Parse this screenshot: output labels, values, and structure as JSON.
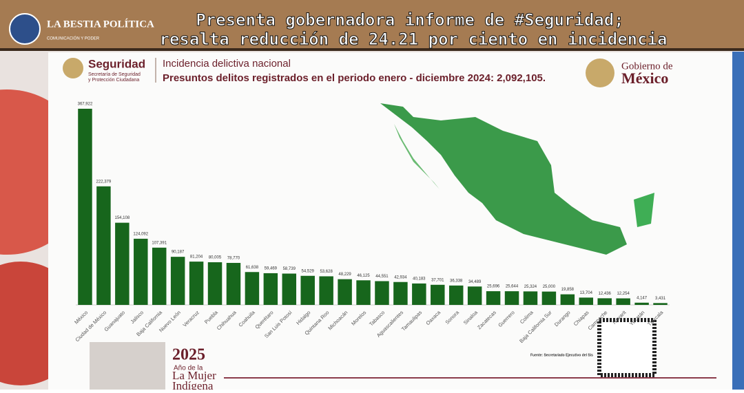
{
  "header": {
    "brand": "LA BESTIA POLÍTICA",
    "brand_tagline": "COMUNICACIÓN Y PODER",
    "title_line1": "Presenta gobernadora informe de #Seguridad;",
    "title_line2": "resalta reducción de 24.21 por ciento en incidencia"
  },
  "slide": {
    "agency": "Seguridad",
    "agency_sub1": "Secretaría de Seguridad",
    "agency_sub2": "y Protección Ciudadana",
    "gov1": "Gobierno de",
    "gov2": "México",
    "year": "2025",
    "year_sub": "Año de la",
    "year_line2": "La Mujer",
    "year_line3": "Indígena",
    "source": "Fuente: Secretariado Ejecutivo del Sis"
  },
  "chart_data": {
    "type": "bar",
    "title": "Incidencia delictiva nacional",
    "subtitle": "Presuntos delitos registrados en el periodo enero - diciembre 2024: 2,092,105.",
    "color": "#17661c",
    "categories": [
      "México",
      "Ciudad de México",
      "Guanajuato",
      "Jalisco",
      "Baja California",
      "Nuevo León",
      "Veracruz",
      "Puebla",
      "Chihuahua",
      "Coahuila",
      "Querétaro",
      "San Luis Potosí",
      "Hidalgo",
      "Quintana Roo",
      "Michoacán",
      "Morelos",
      "Tabasco",
      "Aguascalientes",
      "Tamaulipas",
      "Oaxaca",
      "Sonora",
      "Sinaloa",
      "Zacatecas",
      "Guerrero",
      "Colima",
      "Baja California Sur",
      "Durango",
      "Chiapas",
      "Campeche",
      "Nayarit",
      "Yucatán",
      "Tlaxcala"
    ],
    "values": [
      367922,
      222379,
      154108,
      124092,
      107391,
      90187,
      81204,
      80005,
      78770,
      61638,
      59469,
      58739,
      54529,
      53628,
      48229,
      46125,
      44551,
      42934,
      40183,
      37701,
      36338,
      34489,
      25696,
      25644,
      25324,
      25000,
      19858,
      13704,
      12436,
      12254,
      4147,
      3431
    ],
    "value_labels": [
      "367,922",
      "222,379",
      "154,108",
      "124,092",
      "107,391",
      "90,187",
      "81,204",
      "80,005",
      "78,770",
      "61,638",
      "59,469",
      "58,739",
      "54,529",
      "53,628",
      "48,229",
      "46,125",
      "44,551",
      "42,934",
      "40,183",
      "37,701",
      "36,338",
      "34,489",
      "25,696",
      "25,644",
      "25,324",
      "25,000",
      "19,858",
      "13,704",
      "12,436",
      "12,254",
      "4,147",
      "3,431"
    ]
  }
}
